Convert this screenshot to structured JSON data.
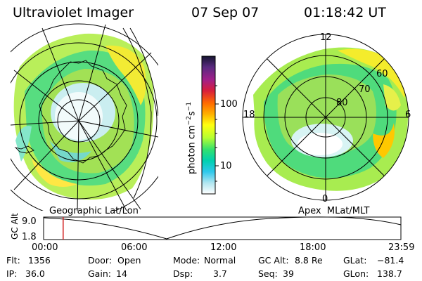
{
  "header": {
    "instrument": "Ultraviolet Imager",
    "date": "07 Sep 07",
    "time": "01:18:42 UT"
  },
  "colorbar": {
    "label": "photon cm",
    "label_sup1": "−2",
    "label_mid": "s",
    "label_sup2": "−1",
    "ticks": [
      "100",
      "10"
    ],
    "scale": "log",
    "colors": [
      "#202020",
      "#6a2a8a",
      "#c0143c",
      "#ff5a00",
      "#ffa800",
      "#ffff00",
      "#b0ff30",
      "#30e080",
      "#00c8e0",
      "#90e0f0",
      "#ffffff"
    ]
  },
  "left_panel": {
    "caption": "Geographic Lat/Lon"
  },
  "right_panel": {
    "caption": "Apex  MLat/MLT",
    "mlt_labels": [
      "12",
      "18",
      "6",
      "0"
    ],
    "lat_labels": [
      "60",
      "70",
      "80"
    ]
  },
  "timeline": {
    "axis_label": "GC Alt",
    "y_ticks": [
      "9.0",
      "1.8"
    ],
    "x_ticks": [
      "00:00",
      "06:00",
      "12:00",
      "18:00",
      "23:59"
    ],
    "current_time_fraction": 0.0547
  },
  "info": {
    "flt_label": "Flt:",
    "flt_value": "1356",
    "ip_label": "IP:",
    "ip_value": "36.0",
    "door_label": "Door:",
    "door_value": "Open",
    "gain_label": "Gain:",
    "gain_value": "14",
    "mode_label": "Mode:",
    "mode_value": "Normal",
    "dsp_label": "Dsp:",
    "dsp_value": "3.7",
    "gcalt_label": "GC Alt:",
    "gcalt_value": "8.8 Re",
    "seq_label": "Seq:",
    "seq_value": "39",
    "glat_label": "GLat:",
    "glat_value": "−81.4",
    "glon_label": "GLon:",
    "glon_value": "138.7"
  }
}
